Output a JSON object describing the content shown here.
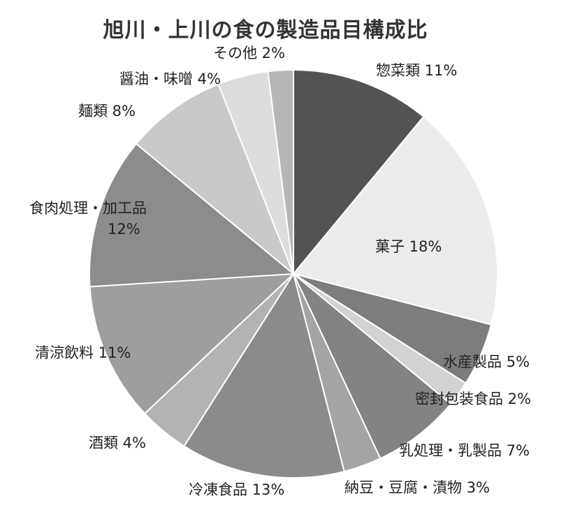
{
  "chart_data": {
    "type": "pie",
    "title": "旭川・上川の食の製造品目構成比",
    "start_angle_deg": 0,
    "direction": "clockwise",
    "slices": [
      {
        "label": "惣菜類 11%",
        "value": 11,
        "color": "#555352"
      },
      {
        "label": "菓子 18%",
        "value": 18,
        "color": "#ececec"
      },
      {
        "label": "水産製品 5%",
        "value": 5,
        "color": "#7d7d7d"
      },
      {
        "label": "密封包装食品 2%",
        "value": 2,
        "color": "#d2d2d2"
      },
      {
        "label": "乳処理・乳製品 7%",
        "value": 7,
        "color": "#838383"
      },
      {
        "label": "納豆・豆腐・漬物 3%",
        "value": 3,
        "color": "#a4a4a4"
      },
      {
        "label": "冷凍食品 13%",
        "value": 13,
        "color": "#8b8b8b"
      },
      {
        "label": "酒類 4%",
        "value": 4,
        "color": "#b3b3b3"
      },
      {
        "label": "清涼飲料 11%",
        "value": 11,
        "color": "#9e9e9e"
      },
      {
        "label": "食肉処理・加工品 12%",
        "value": 12,
        "color": "#8c8c8c"
      },
      {
        "label": "麺類 8%",
        "value": 8,
        "color": "#c9c9c9"
      },
      {
        "label": "醤油・味噌 4%",
        "value": 4,
        "color": "#dcdcdc"
      },
      {
        "label": "その他 2%",
        "value": 2,
        "color": "#b6b6b6"
      }
    ]
  }
}
